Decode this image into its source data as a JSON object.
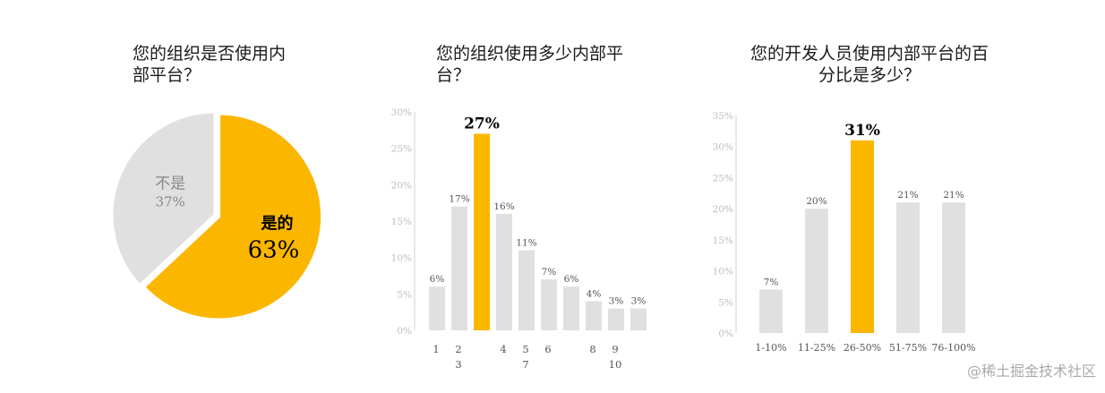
{
  "chart_data": [
    {
      "type": "pie",
      "title": "您的组织是否使用内\n部平台？",
      "slices": [
        {
          "label": "是的",
          "value": 63,
          "value_label": "63%",
          "color": "#FBB600"
        },
        {
          "label": "不是",
          "value": 37,
          "value_label": "37%",
          "color": "#E0E0E0"
        }
      ]
    },
    {
      "type": "bar",
      "title": "您的组织使用多少内部平\n台？",
      "ylim": [
        0,
        30
      ],
      "yticks": [
        "0%",
        "5%",
        "10%",
        "15%",
        "20%",
        "25%",
        "30%"
      ],
      "values": [
        6,
        17,
        27,
        16,
        11,
        7,
        6,
        4,
        3,
        3
      ],
      "value_labels": [
        "6%",
        "17%",
        "27%",
        "16%",
        "11%",
        "7%",
        "6%",
        "4%",
        "3%",
        "3%"
      ],
      "x_labels_row1": [
        "1",
        "2",
        "",
        "4",
        "5",
        "6",
        "",
        "8",
        "9",
        ""
      ],
      "x_labels_row2": [
        "",
        "3",
        "",
        "",
        "7",
        "",
        "",
        "",
        "10",
        ""
      ],
      "highlight_index": 2,
      "colors": {
        "bar": "#E0E0E0",
        "highlight": "#FBB600"
      }
    },
    {
      "type": "bar",
      "title": "您的开发人员使用内部平台的百\n分比是多少？",
      "ylim": [
        0,
        35
      ],
      "yticks": [
        "0%",
        "5%",
        "10%",
        "15%",
        "20%",
        "25%",
        "30%",
        "35%"
      ],
      "categories": [
        "1-10%",
        "11-25%",
        "26-50%",
        "51-75%",
        "76-100%"
      ],
      "values": [
        7,
        20,
        31,
        21,
        21
      ],
      "value_labels": [
        "7%",
        "20%",
        "31%",
        "21%",
        "21%"
      ],
      "highlight_index": 2,
      "colors": {
        "bar": "#E0E0E0",
        "highlight": "#FBB600"
      }
    }
  ],
  "watermark": "@稀土掘金技术社区"
}
